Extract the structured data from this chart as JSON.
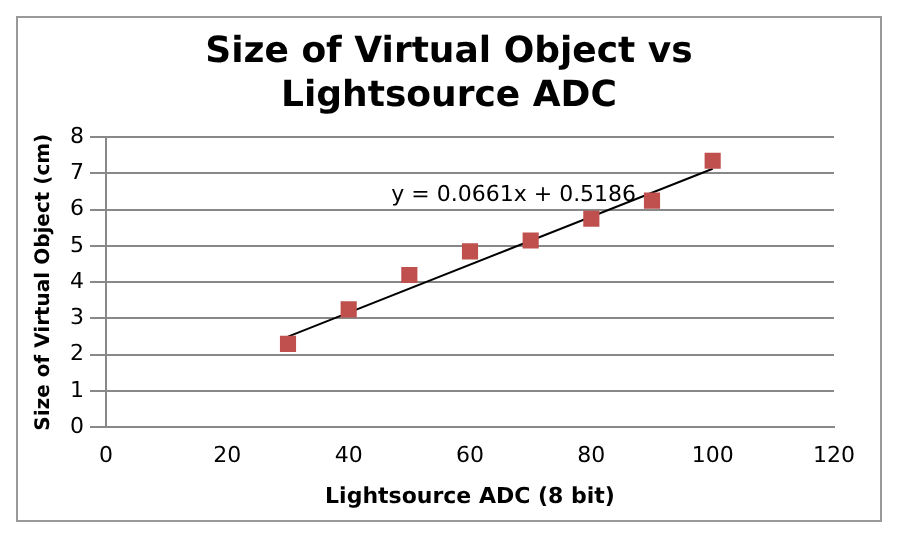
{
  "chart_data": {
    "type": "scatter",
    "title": "Size of Virtual Object vs Lightsource ADC",
    "xlabel": "Lightsource ADC (8 bit)",
    "ylabel": "Size of Virtual Object (cm)",
    "x": [
      30,
      40,
      50,
      60,
      70,
      80,
      90,
      100
    ],
    "series": [
      {
        "type": "scatter",
        "color": "#c0504d",
        "values": [
          2.3,
          3.25,
          4.2,
          4.85,
          5.15,
          5.75,
          6.25,
          7.35
        ],
        "marker": "square"
      },
      {
        "type": "line",
        "color": "#000000",
        "x": [
          30,
          100
        ],
        "values": [
          2.5,
          7.13
        ],
        "marker": "none"
      }
    ],
    "annotations": [
      "y = 0.0661x + 0.5186"
    ],
    "xlim": [
      0,
      120
    ],
    "xticks": [
      0,
      20,
      40,
      60,
      80,
      100,
      120
    ],
    "ylim": [
      0,
      8
    ],
    "yticks": [
      0,
      1,
      2,
      3,
      4,
      5,
      6,
      7,
      8
    ],
    "grid": "y",
    "legend": false
  }
}
